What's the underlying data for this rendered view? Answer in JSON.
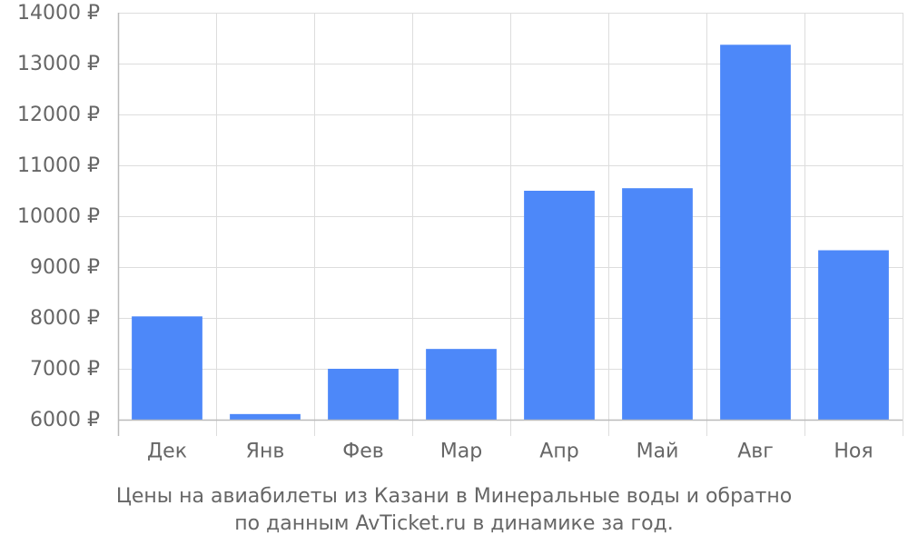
{
  "chart_data": {
    "type": "bar",
    "categories": [
      "Дек",
      "Янв",
      "Фев",
      "Мар",
      "Апр",
      "Май",
      "Авг",
      "Ноя"
    ],
    "values": [
      8030,
      6110,
      7000,
      7390,
      10500,
      10550,
      13370,
      9330
    ],
    "ylim": [
      6000,
      14000
    ],
    "yticks": [
      6000,
      7000,
      8000,
      9000,
      10000,
      11000,
      12000,
      13000,
      14000
    ],
    "y_tick_suffix": " ₽",
    "grid": true,
    "colors": {
      "bar": "#4d88f9",
      "grid": "#dddddd",
      "axis": "#bbbbbb",
      "text": "#666666"
    }
  },
  "caption": {
    "line1": "Цены на авиабилеты из Казани в Минеральные воды и обратно",
    "line2": "по данным AvTicket.ru в динамике за год."
  }
}
